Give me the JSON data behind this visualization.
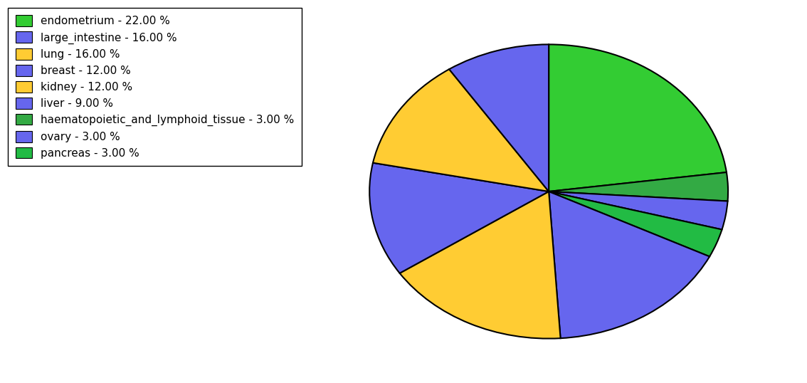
{
  "labels": [
    "endometrium",
    "haematopoietic_and_lymphoid_tissue",
    "ovary",
    "pancreas",
    "large_intestine",
    "lung",
    "breast",
    "kidney",
    "liver"
  ],
  "values": [
    22.0,
    3.0,
    3.0,
    3.0,
    16.0,
    16.0,
    12.0,
    12.0,
    9.0
  ],
  "colors": [
    "#33cc33",
    "#33aa44",
    "#6666ee",
    "#22bb44",
    "#6666ee",
    "#ffcc33",
    "#6666ee",
    "#ffcc33",
    "#6666ee"
  ],
  "legend_labels": [
    "endometrium - 22.00 %",
    "large_intestine - 16.00 %",
    "lung - 16.00 %",
    "breast - 12.00 %",
    "kidney - 12.00 %",
    "liver - 9.00 %",
    "haematopoietic_and_lymphoid_tissue - 3.00 %",
    "ovary - 3.00 %",
    "pancreas - 3.00 %"
  ],
  "legend_colors": [
    "#33cc33",
    "#6666ee",
    "#ffcc33",
    "#6666ee",
    "#ffcc33",
    "#6666ee",
    "#33aa44",
    "#6666ee",
    "#22bb44"
  ],
  "startangle": 90,
  "figsize": [
    11.34,
    5.38
  ],
  "dpi": 100
}
